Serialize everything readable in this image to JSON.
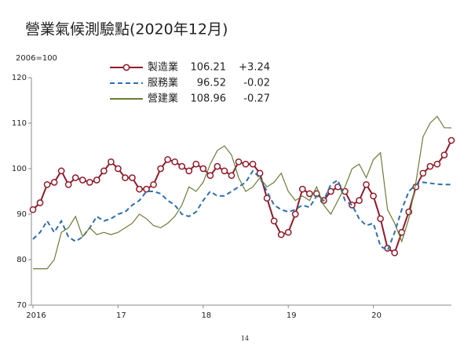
{
  "chart_data": {
    "type": "line",
    "title": "營業氣候測驗點(2020年12月)",
    "y_label": "2006=100",
    "page_number": "14",
    "categories": [
      "2016",
      null,
      null,
      null,
      null,
      null,
      null,
      null,
      null,
      null,
      null,
      null,
      "17",
      null,
      null,
      null,
      null,
      null,
      null,
      null,
      null,
      null,
      null,
      null,
      "18",
      null,
      null,
      null,
      null,
      null,
      null,
      null,
      null,
      null,
      null,
      null,
      "19",
      null,
      null,
      null,
      null,
      null,
      null,
      null,
      null,
      null,
      null,
      null,
      "20",
      null,
      null,
      null,
      null,
      null,
      null,
      null,
      null,
      null,
      null,
      null
    ],
    "ylim": [
      70,
      120
    ],
    "yticks": [
      70,
      80,
      90,
      100,
      110,
      120
    ],
    "grid": false,
    "series": [
      {
        "name": "製造業",
        "color": "#8e1b2a",
        "marker": "circle",
        "dash": false,
        "legend_value": "106.21",
        "legend_change": "+3.24",
        "values": [
          91,
          92.5,
          96.5,
          97,
          99.5,
          96.5,
          98,
          97.5,
          97,
          97.5,
          99.5,
          101.5,
          100,
          98,
          98,
          95.5,
          95.5,
          96.5,
          100,
          102,
          101.5,
          100.5,
          99.5,
          101,
          100,
          98.5,
          100.5,
          99.5,
          98.5,
          101.5,
          101,
          101,
          99,
          93.5,
          88.5,
          85.5,
          86,
          90,
          95.5,
          94.5,
          94.5,
          93,
          95,
          96,
          95,
          92,
          93,
          96.5,
          94,
          89,
          82.5,
          81.5,
          86,
          90.5,
          96,
          99,
          100.5,
          101,
          103,
          106.21
        ]
      },
      {
        "name": "服務業",
        "color": "#2e6fad",
        "marker": null,
        "dash": true,
        "legend_value": "96.52",
        "legend_change": "-0.02",
        "values": [
          84.5,
          86,
          88.5,
          86,
          88.5,
          85,
          84,
          85,
          87,
          89.5,
          88.5,
          89,
          90,
          90.5,
          92,
          93,
          95,
          95,
          94.5,
          93,
          92,
          90,
          89.5,
          90.5,
          93,
          95,
          94,
          94,
          95,
          96,
          97,
          99.5,
          98,
          95,
          92,
          91,
          90.5,
          91,
          92,
          91.5,
          94,
          93,
          96.5,
          97.5,
          93,
          92,
          89,
          87.5,
          88,
          83,
          82,
          86,
          91,
          95,
          96.5,
          97,
          96.8,
          96.6,
          96.5,
          96.52
        ]
      },
      {
        "name": "營建業",
        "color": "#6b7b3a",
        "marker": null,
        "dash": false,
        "legend_value": "108.96",
        "legend_change": "-0.27",
        "values": [
          78,
          78,
          78,
          80,
          86,
          87,
          89.5,
          85,
          87,
          85.5,
          86,
          85.5,
          86,
          87,
          88,
          90,
          89,
          87.5,
          87,
          88,
          89.5,
          92,
          96,
          95,
          97,
          101,
          104,
          105,
          103,
          98,
          95,
          96,
          98,
          96,
          97,
          99,
          95,
          93,
          94,
          93,
          96,
          92,
          90,
          93,
          96,
          100,
          101,
          98,
          102,
          103.5,
          91,
          88,
          84,
          89,
          97,
          107,
          110,
          111.5,
          109,
          108.96
        ]
      }
    ]
  }
}
